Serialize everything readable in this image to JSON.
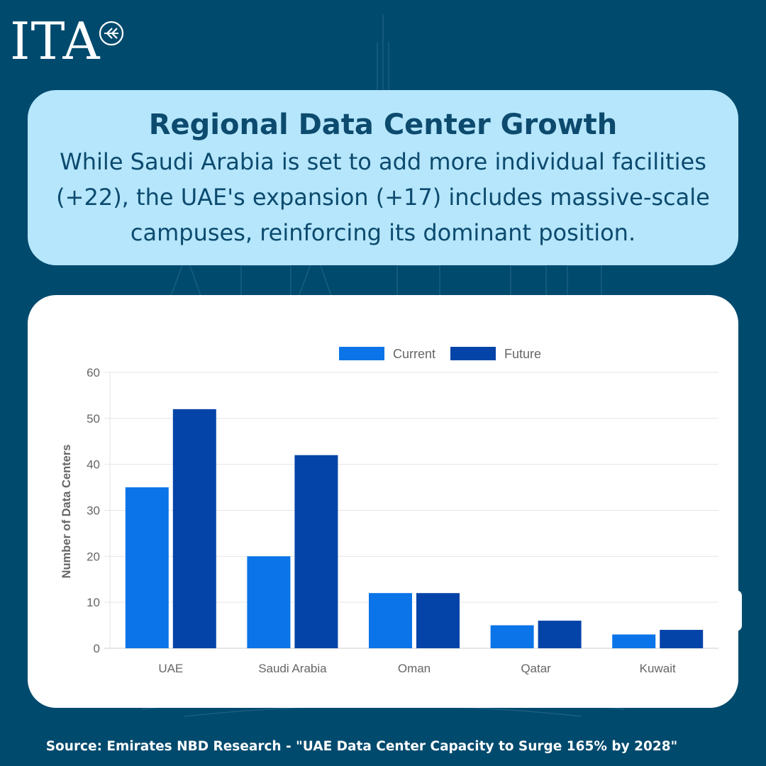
{
  "logo": {
    "text": "ITA",
    "mark_icon": "double-chevron-circle-icon"
  },
  "header": {
    "title": "Regional Data Center Growth",
    "description": "While Saudi Arabia is set to add more individual facilities (+22), the UAE's expansion (+17) includes massive-scale campuses, reinforcing its dominant position."
  },
  "colors": {
    "background": "#004a6e",
    "header_card": "#b5e6fb",
    "header_text": "#0c4a6e",
    "current": "#0a74e8",
    "future": "#0444a8"
  },
  "chart_data": {
    "type": "bar",
    "categories": [
      "UAE",
      "Saudi Arabia",
      "Oman",
      "Qatar",
      "Kuwait"
    ],
    "series": [
      {
        "name": "Current",
        "values": [
          35,
          20,
          12,
          5,
          3
        ]
      },
      {
        "name": "Future",
        "values": [
          52,
          42,
          12,
          6,
          4
        ]
      }
    ],
    "ylabel": "Number of Data Centers",
    "xlabel": "",
    "ylim": [
      0,
      60
    ],
    "yticks": [
      0,
      10,
      20,
      30,
      40,
      50,
      60
    ],
    "grid": true,
    "legend_position": "top-center"
  },
  "source": "Source: Emirates NBD Research - \"UAE Data Center Capacity to Surge 165% by 2028\""
}
